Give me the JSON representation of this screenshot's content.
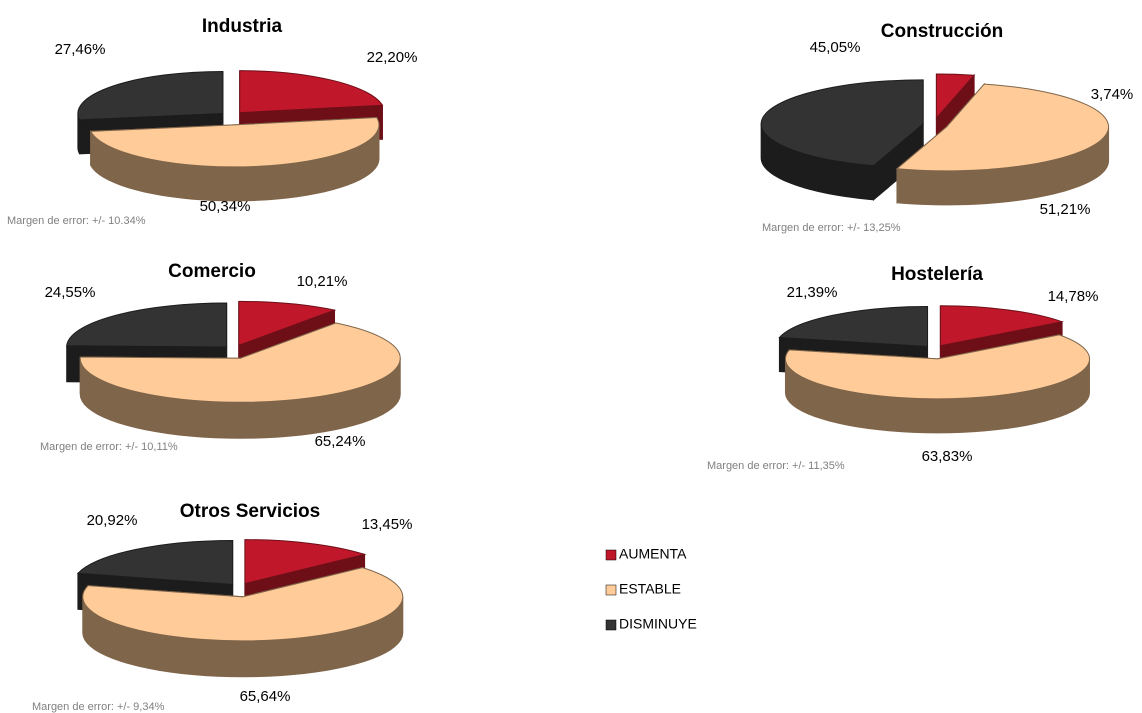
{
  "legend": {
    "labels": [
      "AUMENTA",
      "ESTABLE",
      "DISMINUYE"
    ],
    "colors": [
      "#c0182a",
      "#ffcc99",
      "#333333"
    ],
    "side_colors": [
      "#6e0f18",
      "#7f654a",
      "#1c1c1c"
    ]
  },
  "chart_data": [
    {
      "type": "pie",
      "title": "Industria",
      "values": [
        22.2,
        50.34,
        27.46
      ],
      "value_labels": [
        "22,20%",
        "50,34%",
        "27,46%"
      ],
      "note": "Margen de error: +/- 10.34%"
    },
    {
      "type": "pie",
      "title": "Construcción",
      "values": [
        3.74,
        51.21,
        45.05
      ],
      "value_labels": [
        "3,74%",
        "51,21%",
        "45,05%"
      ],
      "note": "Margen de error: +/- 13,25%"
    },
    {
      "type": "pie",
      "title": "Comercio",
      "values": [
        10.21,
        65.24,
        24.55
      ],
      "value_labels": [
        "10,21%",
        "65,24%",
        "24,55%"
      ],
      "note": "Margen de error: +/- 10,11%"
    },
    {
      "type": "pie",
      "title": "Hostelería",
      "values": [
        14.78,
        63.83,
        21.39
      ],
      "value_labels": [
        "14,78%",
        "63,83%",
        "21,39%"
      ],
      "note": "Margen de error: +/- 11,35%"
    },
    {
      "type": "pie",
      "title": "Otros Servicios",
      "values": [
        13.45,
        65.64,
        20.92
      ],
      "value_labels": [
        "13,45%",
        "65,64%",
        "20,92%"
      ],
      "note": "Margen de error: +/- 9,34%"
    }
  ]
}
